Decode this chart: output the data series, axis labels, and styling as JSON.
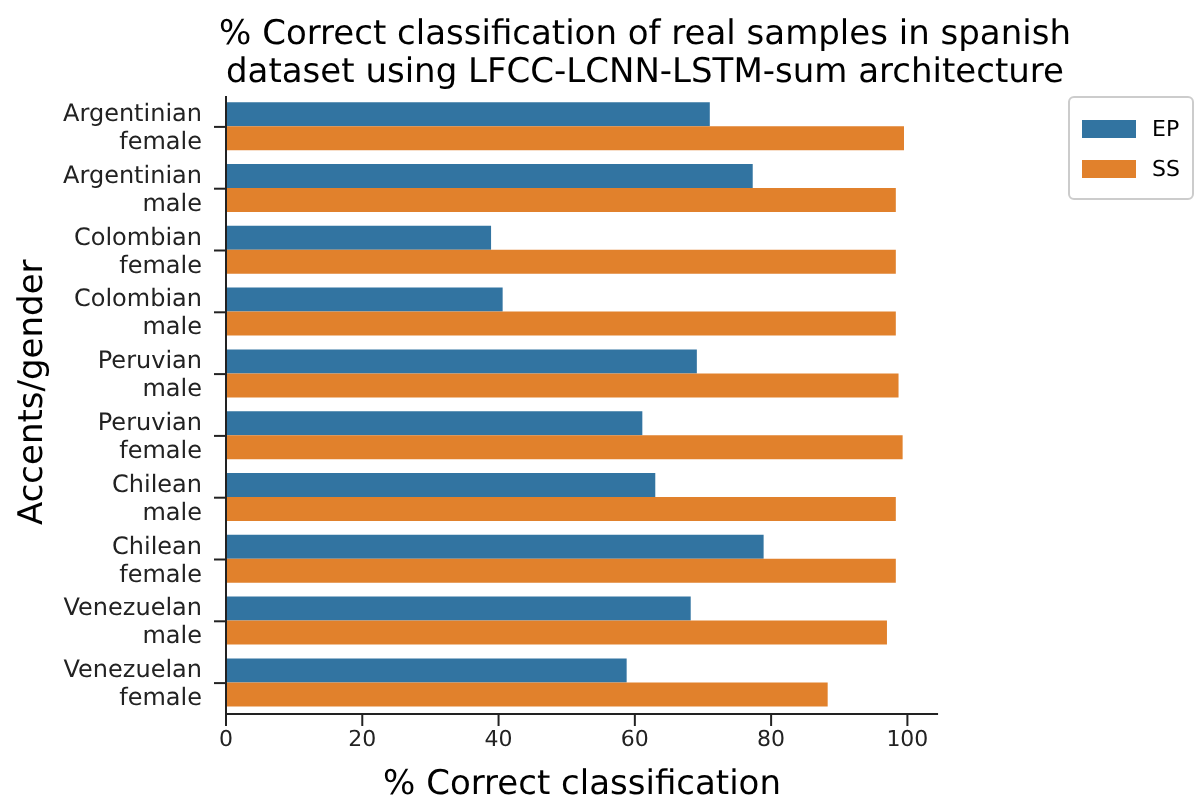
{
  "chart_data": {
    "type": "bar",
    "orientation": "horizontal",
    "title": "% Correct classification of real samples in spanish\ndataset using LFCC-LCNN-LSTM-sum architecture",
    "xlabel": "% Correct classification",
    "ylabel": "Accents/gender",
    "categories": [
      "Argentinian\nfemale",
      "Argentinian\nmale",
      "Colombian\nfemale",
      "Colombian\nmale",
      "Peruvian\nmale",
      "Peruvian\nfemale",
      "Chilean\nmale",
      "Chilean\nfemale",
      "Venezuelan\nmale",
      "Venezuelan\nfemale"
    ],
    "series": [
      {
        "name": "EP",
        "color": "#3274a1",
        "values": [
          71.0,
          77.3,
          38.9,
          40.6,
          69.1,
          61.1,
          63.0,
          78.9,
          68.2,
          58.8
        ]
      },
      {
        "name": "SS",
        "color": "#e1812c",
        "values": [
          99.5,
          98.3,
          98.3,
          98.3,
          98.7,
          99.3,
          98.3,
          98.3,
          97.0,
          88.3
        ]
      }
    ],
    "xlim": [
      0,
      104.5
    ],
    "xticks": [
      0,
      20,
      40,
      60,
      80,
      100
    ],
    "grid": false,
    "legend": "top right"
  }
}
